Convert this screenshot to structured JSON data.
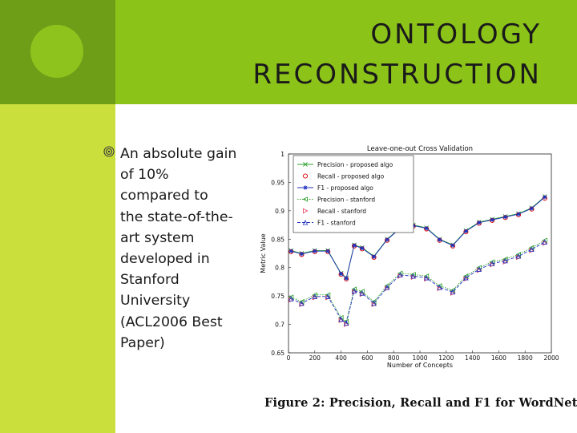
{
  "slide": {
    "title_line1": "ONTOLOGY",
    "title_line2": "RECONSTRUCTION",
    "bullet_text": "An absolute gain of 10% compared to the state-of-the-art system developed in Stanford University (ACL2006 Best Paper)",
    "bullet_lines": [
      "An absolute gain",
      "of 10%",
      "compared to",
      "the state-of-the-",
      "art system",
      "developed in",
      "Stanford",
      "University",
      "(ACL2006 Best",
      "Paper)"
    ],
    "caption": "Figure 2:  Precision, Recall and F1 for WordNet",
    "colors": {
      "title_band": "#8cc319",
      "left_band": "#cadf3c",
      "left_band_top": "#6e9d18",
      "circle": "#8ec31d"
    },
    "icons": {
      "bullet": "target-bullet-icon"
    }
  },
  "chart_data": {
    "type": "line",
    "title": "Leave-one-out Cross Validation",
    "xlabel": "Number of Concepts",
    "ylabel": "Metric Value",
    "xlim": [
      0,
      2000
    ],
    "ylim": [
      0.65,
      1
    ],
    "xticks": [
      0,
      200,
      400,
      600,
      800,
      1000,
      1200,
      1400,
      1600,
      1800,
      2000
    ],
    "yticks": [
      0.65,
      0.7,
      0.75,
      0.8,
      0.85,
      0.9,
      0.95,
      1
    ],
    "legend_position": "top-left",
    "x": [
      20,
      100,
      200,
      300,
      400,
      440,
      500,
      560,
      650,
      750,
      850,
      950,
      1050,
      1150,
      1250,
      1350,
      1450,
      1550,
      1650,
      1750,
      1850,
      1950
    ],
    "series": [
      {
        "name": "Precision - proposed algo",
        "color": "#2ca02c",
        "marker": "x",
        "dash": "solid",
        "values": [
          0.83,
          0.825,
          0.83,
          0.83,
          0.79,
          0.782,
          0.84,
          0.835,
          0.82,
          0.85,
          0.87,
          0.875,
          0.87,
          0.85,
          0.84,
          0.865,
          0.88,
          0.885,
          0.89,
          0.895,
          0.905,
          0.925
        ]
      },
      {
        "name": "Recall - proposed algo",
        "color": "#e00000",
        "marker": "o",
        "dash": "none",
        "values": [
          0.828,
          0.823,
          0.828,
          0.828,
          0.788,
          0.78,
          0.838,
          0.833,
          0.818,
          0.848,
          0.868,
          0.873,
          0.868,
          0.848,
          0.838,
          0.863,
          0.878,
          0.883,
          0.888,
          0.893,
          0.903,
          0.922
        ]
      },
      {
        "name": "F1 - proposed algo",
        "color": "#1f2fbf",
        "marker": "*",
        "dash": "solid",
        "values": [
          0.829,
          0.824,
          0.829,
          0.829,
          0.789,
          0.781,
          0.839,
          0.834,
          0.819,
          0.849,
          0.869,
          0.874,
          0.869,
          0.849,
          0.839,
          0.864,
          0.879,
          0.884,
          0.889,
          0.894,
          0.904,
          0.924
        ]
      },
      {
        "name": "Precision - stanford",
        "color": "#2ca02c",
        "marker": "<",
        "dash": "dotted",
        "values": [
          0.748,
          0.74,
          0.752,
          0.752,
          0.712,
          0.705,
          0.762,
          0.758,
          0.74,
          0.768,
          0.79,
          0.788,
          0.785,
          0.768,
          0.76,
          0.785,
          0.8,
          0.81,
          0.815,
          0.823,
          0.835,
          0.848
        ]
      },
      {
        "name": "Recall - stanford",
        "color": "#e0405a",
        "marker": ">",
        "dash": "none",
        "values": [
          0.743,
          0.735,
          0.747,
          0.747,
          0.707,
          0.7,
          0.757,
          0.753,
          0.735,
          0.763,
          0.785,
          0.783,
          0.78,
          0.763,
          0.755,
          0.78,
          0.795,
          0.805,
          0.81,
          0.818,
          0.83,
          0.843
        ]
      },
      {
        "name": "F1 - stanford",
        "color": "#1f2fbf",
        "marker": "^",
        "dash": "dashed",
        "values": [
          0.745,
          0.737,
          0.749,
          0.749,
          0.709,
          0.702,
          0.759,
          0.755,
          0.737,
          0.765,
          0.787,
          0.785,
          0.782,
          0.765,
          0.757,
          0.782,
          0.797,
          0.807,
          0.812,
          0.82,
          0.832,
          0.845
        ]
      }
    ]
  }
}
